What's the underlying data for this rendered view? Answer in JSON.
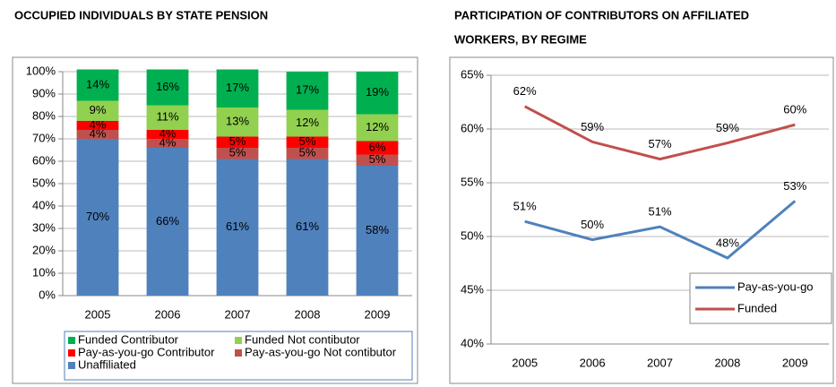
{
  "chart_data": [
    {
      "type": "stacked_bar",
      "title": "OCCUPIED INDIVIDUALS BY STATE PENSION",
      "categories": [
        "2005",
        "2006",
        "2007",
        "2008",
        "2009"
      ],
      "series": [
        {
          "name": "Funded Contributor",
          "color": "#00b050",
          "values": [
            14,
            16,
            17,
            17,
            19
          ],
          "value_labels": [
            "14%",
            "16%",
            "17%",
            "17%",
            "19%"
          ]
        },
        {
          "name": "Funded Not contibutor",
          "color": "#92d050",
          "values": [
            9,
            11,
            13,
            12,
            12
          ],
          "value_labels": [
            "9%",
            "11%",
            "13%",
            "12%",
            "12%"
          ]
        },
        {
          "name": "Pay-as-you-go Contributor",
          "color": "#ff0000",
          "values": [
            4,
            4,
            5,
            5,
            6
          ],
          "value_labels": [
            "4%",
            "4%",
            "5%",
            "5%",
            "6%"
          ]
        },
        {
          "name": "Pay-as-you-go Not contibutor",
          "color": "#c0504d",
          "values": [
            4,
            4,
            5,
            5,
            5
          ],
          "value_labels": [
            "4%",
            "4%",
            "5%",
            "5%",
            "5%"
          ]
        },
        {
          "name": "Unaffiliated",
          "color": "#4f81bd",
          "values": [
            70,
            66,
            61,
            61,
            58
          ],
          "value_labels": [
            "70%",
            "66%",
            "61%",
            "61%",
            "58%"
          ]
        }
      ],
      "ylim": [
        0,
        100
      ],
      "yticks": [
        {
          "value": 0,
          "label": "0%"
        },
        {
          "value": 10,
          "label": "10%"
        },
        {
          "value": 20,
          "label": "20%"
        },
        {
          "value": 30,
          "label": "30%"
        },
        {
          "value": 40,
          "label": "40%"
        },
        {
          "value": 50,
          "label": "50%"
        },
        {
          "value": 60,
          "label": "60%"
        },
        {
          "value": 70,
          "label": "70%"
        },
        {
          "value": 80,
          "label": "80%"
        },
        {
          "value": 90,
          "label": "90%"
        },
        {
          "value": 100,
          "label": "100%"
        }
      ],
      "grid": true,
      "legend": "bottom"
    },
    {
      "type": "line",
      "title": [
        "PARTICIPATION OF CONTRIBUTORS ON AFFILIATED",
        "WORKERS, BY REGIME"
      ],
      "categories": [
        "2005",
        "2006",
        "2007",
        "2008",
        "2009"
      ],
      "series": [
        {
          "name": "Pay-as-you-go",
          "color": "#4f81bd",
          "values": [
            51.4,
            49.7,
            50.9,
            48.0,
            53.3
          ],
          "value_labels": [
            "51%",
            "50%",
            "51%",
            "48%",
            "53%"
          ]
        },
        {
          "name": "Funded",
          "color": "#c0504d",
          "values": [
            62.1,
            58.8,
            57.2,
            58.7,
            60.4
          ],
          "value_labels": [
            "62%",
            "59%",
            "57%",
            "59%",
            "60%"
          ]
        }
      ],
      "ylim": [
        40,
        65
      ],
      "yticks": [
        {
          "value": 40,
          "label": "40%"
        },
        {
          "value": 45,
          "label": "45%"
        },
        {
          "value": 50,
          "label": "50%"
        },
        {
          "value": 55,
          "label": "55%"
        },
        {
          "value": 60,
          "label": "60%"
        },
        {
          "value": 65,
          "label": "65%"
        }
      ],
      "grid": true,
      "legend": "lower right"
    }
  ]
}
